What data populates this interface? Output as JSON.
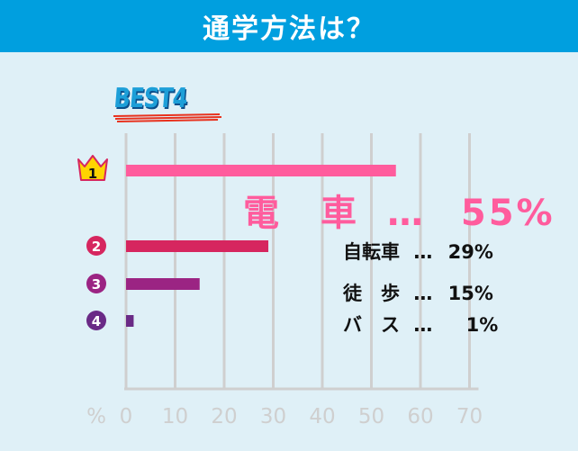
{
  "header": {
    "title": "通学方法は？"
  },
  "badge": {
    "text": "BEST4"
  },
  "colors": {
    "header_bg": "#009fdf",
    "background": "#dff0f7",
    "grid": "#cfcfcf",
    "rank1": "#ff5c9d",
    "rank2": "#d6265f",
    "rank3": "#9b2483",
    "rank4": "#6a2a86"
  },
  "chart_data": {
    "type": "bar",
    "orientation": "horizontal",
    "categories": [
      "電　車",
      "自転車",
      "徒　歩",
      "バ　ス"
    ],
    "values": [
      55,
      29,
      15,
      1
    ],
    "value_labels": [
      "55%",
      "29%",
      "15%",
      "1%"
    ],
    "rank_markers": [
      "1",
      "2",
      "3",
      "4"
    ],
    "separator": "…",
    "xlabel": "%",
    "xlim": [
      0,
      70
    ],
    "x_ticks": [
      "0",
      "10",
      "20",
      "30",
      "40",
      "50",
      "60",
      "70"
    ],
    "grid": true
  }
}
